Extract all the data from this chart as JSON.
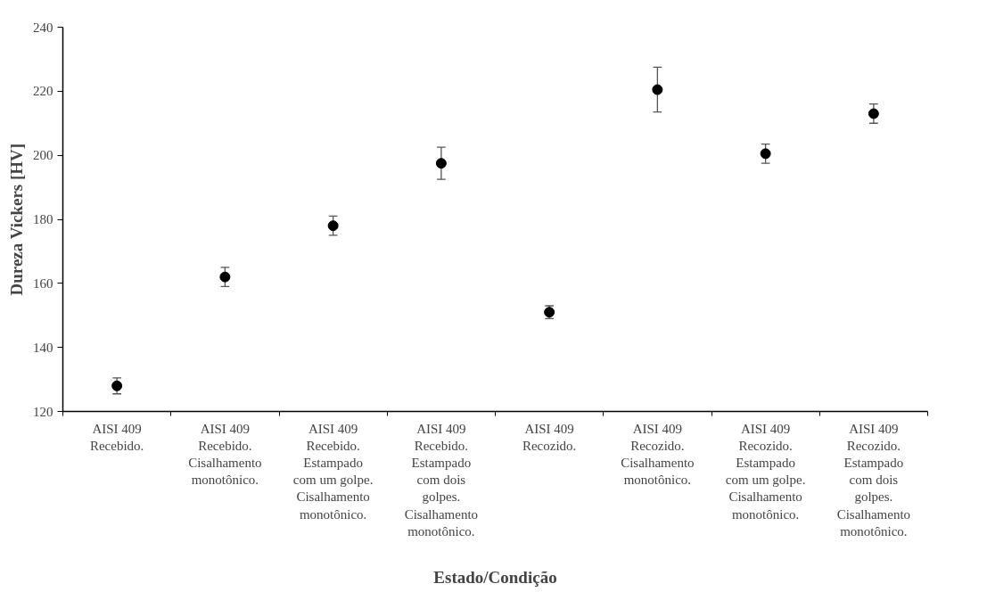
{
  "chart_data": {
    "type": "scatter",
    "xlabel": "Estado/Condição",
    "ylabel": "Dureza Vickers [HV]",
    "categories": [
      "AISI 409\nRecebido.",
      "AISI 409\nRecebido.\nCisalhamento\nmonotônico.",
      "AISI 409\nRecebido.\nEstampado\ncom um golpe.\nCisalhamento\nmonotônico.",
      "AISI 409\nRecebido.\nEstampado\ncom dois\ngolpes.\nCisalhamento\nmonotônico.",
      "AISI 409\nRecozido.",
      "AISI 409\nRecozido.\nCisalhamento\nmonotônico.",
      "AISI 409\nRecozido.\nEstampado\ncom um golpe.\nCisalhamento\nmonotônico.",
      "AISI 409\nRecozido.\nEstampado\ncom dois\ngolpes.\nCisalhamento\nmonotônico."
    ],
    "values": [
      128,
      162,
      178,
      197.5,
      151,
      220.5,
      200.5,
      213
    ],
    "errors": [
      2.5,
      3,
      3,
      5,
      2,
      7,
      3,
      3
    ],
    "color": "#000000",
    "marker": "circle",
    "ylim": [
      120,
      240
    ],
    "yticks": [
      120,
      140,
      160,
      180,
      200,
      220,
      240
    ],
    "grid": false
  }
}
